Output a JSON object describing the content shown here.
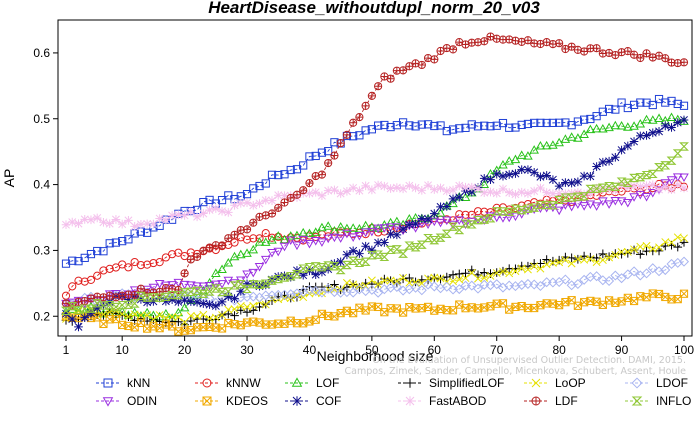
{
  "chart_data": {
    "type": "line",
    "title": "HeartDisease_withoutdupl_norm_20_v03",
    "xlabel": "Neighborhood size",
    "ylabel": "AP",
    "xlim": [
      1,
      100
    ],
    "ylim": [
      0.17,
      0.65
    ],
    "x_ticks": [
      1,
      10,
      20,
      30,
      40,
      50,
      60,
      70,
      80,
      90,
      100
    ],
    "y_ticks": [
      0.2,
      0.3,
      0.4,
      0.5,
      0.6
    ],
    "y_tick_labels": [
      "0.2",
      "0.3",
      "0.4",
      "0.5",
      "0.6"
    ],
    "grid": false,
    "legend_position": "bottom",
    "watermark": [
      "Campos, Zimek, Sander, Campello, Micenkova, Schubert, Assent, Houle",
      "On the Evaluation of Unsupervised Outlier Detection. DAMI, 2015."
    ],
    "series": [
      {
        "name": "kNN",
        "color": "#1f3fd6",
        "marker": "square",
        "keys": [
          [
            1,
            0.28
          ],
          [
            5,
            0.295
          ],
          [
            10,
            0.315
          ],
          [
            15,
            0.335
          ],
          [
            20,
            0.36
          ],
          [
            25,
            0.375
          ],
          [
            30,
            0.385
          ],
          [
            32,
            0.4
          ],
          [
            35,
            0.415
          ],
          [
            38,
            0.425
          ],
          [
            40,
            0.44
          ],
          [
            43,
            0.455
          ],
          [
            46,
            0.47
          ],
          [
            50,
            0.485
          ],
          [
            55,
            0.495
          ],
          [
            58,
            0.492
          ],
          [
            62,
            0.483
          ],
          [
            66,
            0.488
          ],
          [
            70,
            0.492
          ],
          [
            74,
            0.488
          ],
          [
            78,
            0.49
          ],
          [
            82,
            0.495
          ],
          [
            86,
            0.505
          ],
          [
            90,
            0.52
          ],
          [
            94,
            0.525
          ],
          [
            97,
            0.525
          ],
          [
            100,
            0.52
          ]
        ]
      },
      {
        "name": "kNNW",
        "color": "#e0201f",
        "marker": "circle",
        "keys": [
          [
            1,
            0.235
          ],
          [
            3,
            0.25
          ],
          [
            6,
            0.265
          ],
          [
            10,
            0.275
          ],
          [
            15,
            0.285
          ],
          [
            20,
            0.295
          ],
          [
            25,
            0.305
          ],
          [
            30,
            0.32
          ],
          [
            33,
            0.325
          ],
          [
            36,
            0.32
          ],
          [
            40,
            0.32
          ],
          [
            50,
            0.33
          ],
          [
            60,
            0.345
          ],
          [
            70,
            0.36
          ],
          [
            80,
            0.375
          ],
          [
            90,
            0.39
          ],
          [
            100,
            0.4
          ]
        ]
      },
      {
        "name": "LOF",
        "color": "#29c21a",
        "marker": "triangle-up",
        "keys": [
          [
            1,
            0.21
          ],
          [
            5,
            0.21
          ],
          [
            10,
            0.205
          ],
          [
            15,
            0.2
          ],
          [
            18,
            0.2
          ],
          [
            21,
            0.22
          ],
          [
            25,
            0.265
          ],
          [
            28,
            0.29
          ],
          [
            32,
            0.31
          ],
          [
            36,
            0.32
          ],
          [
            40,
            0.33
          ],
          [
            45,
            0.335
          ],
          [
            50,
            0.335
          ],
          [
            55,
            0.34
          ],
          [
            60,
            0.355
          ],
          [
            63,
            0.37
          ],
          [
            67,
            0.395
          ],
          [
            70,
            0.42
          ],
          [
            73,
            0.44
          ],
          [
            76,
            0.45
          ],
          [
            80,
            0.465
          ],
          [
            85,
            0.48
          ],
          [
            90,
            0.49
          ],
          [
            95,
            0.495
          ],
          [
            100,
            0.5
          ]
        ]
      },
      {
        "name": "SimplifiedLOF",
        "color": "#000000",
        "marker": "plus",
        "keys": [
          [
            1,
            0.19
          ],
          [
            5,
            0.205
          ],
          [
            10,
            0.2
          ],
          [
            15,
            0.195
          ],
          [
            20,
            0.19
          ],
          [
            25,
            0.2
          ],
          [
            30,
            0.21
          ],
          [
            35,
            0.225
          ],
          [
            40,
            0.24
          ],
          [
            45,
            0.245
          ],
          [
            50,
            0.25
          ],
          [
            55,
            0.255
          ],
          [
            60,
            0.26
          ],
          [
            65,
            0.265
          ],
          [
            70,
            0.27
          ],
          [
            75,
            0.28
          ],
          [
            80,
            0.285
          ],
          [
            85,
            0.29
          ],
          [
            90,
            0.295
          ],
          [
            95,
            0.3
          ],
          [
            100,
            0.31
          ]
        ]
      },
      {
        "name": "LoOP",
        "color": "#e5e000",
        "marker": "cross",
        "keys": [
          [
            1,
            0.2
          ],
          [
            5,
            0.21
          ],
          [
            10,
            0.205
          ],
          [
            15,
            0.2
          ],
          [
            20,
            0.195
          ],
          [
            25,
            0.2
          ],
          [
            30,
            0.215
          ],
          [
            35,
            0.225
          ],
          [
            40,
            0.235
          ],
          [
            45,
            0.245
          ],
          [
            50,
            0.25
          ],
          [
            55,
            0.255
          ],
          [
            60,
            0.255
          ],
          [
            65,
            0.26
          ],
          [
            70,
            0.265
          ],
          [
            75,
            0.275
          ],
          [
            80,
            0.28
          ],
          [
            85,
            0.285
          ],
          [
            90,
            0.295
          ],
          [
            95,
            0.305
          ],
          [
            100,
            0.32
          ]
        ]
      },
      {
        "name": "LDOF",
        "color": "#a8b4f0",
        "marker": "diamond",
        "keys": [
          [
            1,
            0.22
          ],
          [
            5,
            0.225
          ],
          [
            10,
            0.23
          ],
          [
            15,
            0.235
          ],
          [
            20,
            0.23
          ],
          [
            25,
            0.225
          ],
          [
            30,
            0.23
          ],
          [
            35,
            0.235
          ],
          [
            40,
            0.24
          ],
          [
            45,
            0.24
          ],
          [
            50,
            0.24
          ],
          [
            55,
            0.24
          ],
          [
            60,
            0.245
          ],
          [
            65,
            0.245
          ],
          [
            70,
            0.245
          ],
          [
            75,
            0.245
          ],
          [
            80,
            0.25
          ],
          [
            85,
            0.255
          ],
          [
            90,
            0.26
          ],
          [
            95,
            0.27
          ],
          [
            100,
            0.28
          ]
        ]
      },
      {
        "name": "ODIN",
        "color": "#9a2fe0",
        "marker": "triangle-down",
        "keys": [
          [
            1,
            0.22
          ],
          [
            5,
            0.225
          ],
          [
            10,
            0.235
          ],
          [
            15,
            0.245
          ],
          [
            20,
            0.25
          ],
          [
            25,
            0.25
          ],
          [
            30,
            0.26
          ],
          [
            33,
            0.285
          ],
          [
            36,
            0.31
          ],
          [
            40,
            0.315
          ],
          [
            45,
            0.32
          ],
          [
            50,
            0.33
          ],
          [
            55,
            0.335
          ],
          [
            60,
            0.34
          ],
          [
            65,
            0.345
          ],
          [
            70,
            0.35
          ],
          [
            75,
            0.36
          ],
          [
            80,
            0.365
          ],
          [
            85,
            0.37
          ],
          [
            90,
            0.375
          ],
          [
            95,
            0.385
          ],
          [
            98,
            0.41
          ],
          [
            100,
            0.415
          ]
        ]
      },
      {
        "name": "KDEOS",
        "color": "#f0a800",
        "marker": "square-x",
        "keys": [
          [
            1,
            0.2
          ],
          [
            5,
            0.195
          ],
          [
            10,
            0.19
          ],
          [
            15,
            0.185
          ],
          [
            20,
            0.18
          ],
          [
            25,
            0.185
          ],
          [
            30,
            0.19
          ],
          [
            35,
            0.19
          ],
          [
            40,
            0.195
          ],
          [
            45,
            0.205
          ],
          [
            50,
            0.21
          ],
          [
            55,
            0.21
          ],
          [
            60,
            0.21
          ],
          [
            65,
            0.215
          ],
          [
            70,
            0.215
          ],
          [
            75,
            0.215
          ],
          [
            80,
            0.22
          ],
          [
            85,
            0.22
          ],
          [
            90,
            0.225
          ],
          [
            95,
            0.23
          ],
          [
            100,
            0.23
          ]
        ]
      },
      {
        "name": "COF",
        "color": "#10108c",
        "marker": "asterisk",
        "keys": [
          [
            1,
            0.2
          ],
          [
            3,
            0.185
          ],
          [
            6,
            0.215
          ],
          [
            10,
            0.23
          ],
          [
            15,
            0.225
          ],
          [
            20,
            0.22
          ],
          [
            24,
            0.215
          ],
          [
            27,
            0.225
          ],
          [
            30,
            0.245
          ],
          [
            34,
            0.255
          ],
          [
            38,
            0.265
          ],
          [
            40,
            0.265
          ],
          [
            42,
            0.27
          ],
          [
            44,
            0.28
          ],
          [
            46,
            0.295
          ],
          [
            50,
            0.305
          ],
          [
            55,
            0.33
          ],
          [
            60,
            0.355
          ],
          [
            64,
            0.38
          ],
          [
            67,
            0.4
          ],
          [
            69,
            0.41
          ],
          [
            72,
            0.42
          ],
          [
            75,
            0.42
          ],
          [
            78,
            0.41
          ],
          [
            80,
            0.4
          ],
          [
            83,
            0.4
          ],
          [
            86,
            0.425
          ],
          [
            89,
            0.445
          ],
          [
            92,
            0.465
          ],
          [
            95,
            0.48
          ],
          [
            97,
            0.49
          ],
          [
            100,
            0.495
          ]
        ]
      },
      {
        "name": "FastABOD",
        "color": "#f4c0ec",
        "marker": "star",
        "keys": [
          [
            1,
            0.335
          ],
          [
            3,
            0.345
          ],
          [
            5,
            0.35
          ],
          [
            8,
            0.345
          ],
          [
            12,
            0.34
          ],
          [
            15,
            0.345
          ],
          [
            18,
            0.35
          ],
          [
            22,
            0.355
          ],
          [
            26,
            0.36
          ],
          [
            30,
            0.37
          ],
          [
            35,
            0.38
          ],
          [
            40,
            0.385
          ],
          [
            45,
            0.39
          ],
          [
            50,
            0.395
          ],
          [
            55,
            0.395
          ],
          [
            60,
            0.395
          ],
          [
            65,
            0.395
          ],
          [
            70,
            0.39
          ],
          [
            75,
            0.39
          ],
          [
            80,
            0.39
          ],
          [
            85,
            0.39
          ],
          [
            90,
            0.395
          ],
          [
            95,
            0.395
          ],
          [
            100,
            0.395
          ]
        ]
      },
      {
        "name": "LDF",
        "color": "#b52222",
        "marker": "circle-plus",
        "keys": [
          [
            1,
            0.215
          ],
          [
            5,
            0.225
          ],
          [
            10,
            0.235
          ],
          [
            15,
            0.24
          ],
          [
            19,
            0.24
          ],
          [
            21,
            0.29
          ],
          [
            24,
            0.3
          ],
          [
            28,
            0.325
          ],
          [
            31,
            0.34
          ],
          [
            34,
            0.36
          ],
          [
            37,
            0.375
          ],
          [
            40,
            0.4
          ],
          [
            43,
            0.43
          ],
          [
            46,
            0.475
          ],
          [
            49,
            0.52
          ],
          [
            52,
            0.56
          ],
          [
            55,
            0.575
          ],
          [
            58,
            0.585
          ],
          [
            61,
            0.6
          ],
          [
            64,
            0.615
          ],
          [
            67,
            0.62
          ],
          [
            70,
            0.62
          ],
          [
            75,
            0.615
          ],
          [
            80,
            0.61
          ],
          [
            85,
            0.605
          ],
          [
            90,
            0.6
          ],
          [
            95,
            0.595
          ],
          [
            100,
            0.585
          ]
        ]
      },
      {
        "name": "INFLO",
        "color": "#92c83a",
        "marker": "hourglass",
        "keys": [
          [
            1,
            0.21
          ],
          [
            5,
            0.215
          ],
          [
            10,
            0.22
          ],
          [
            15,
            0.23
          ],
          [
            20,
            0.235
          ],
          [
            25,
            0.24
          ],
          [
            30,
            0.245
          ],
          [
            35,
            0.26
          ],
          [
            40,
            0.27
          ],
          [
            45,
            0.275
          ],
          [
            50,
            0.29
          ],
          [
            55,
            0.3
          ],
          [
            60,
            0.32
          ],
          [
            65,
            0.34
          ],
          [
            70,
            0.355
          ],
          [
            75,
            0.365
          ],
          [
            80,
            0.375
          ],
          [
            85,
            0.39
          ],
          [
            90,
            0.4
          ],
          [
            95,
            0.42
          ],
          [
            100,
            0.455
          ]
        ]
      }
    ]
  }
}
